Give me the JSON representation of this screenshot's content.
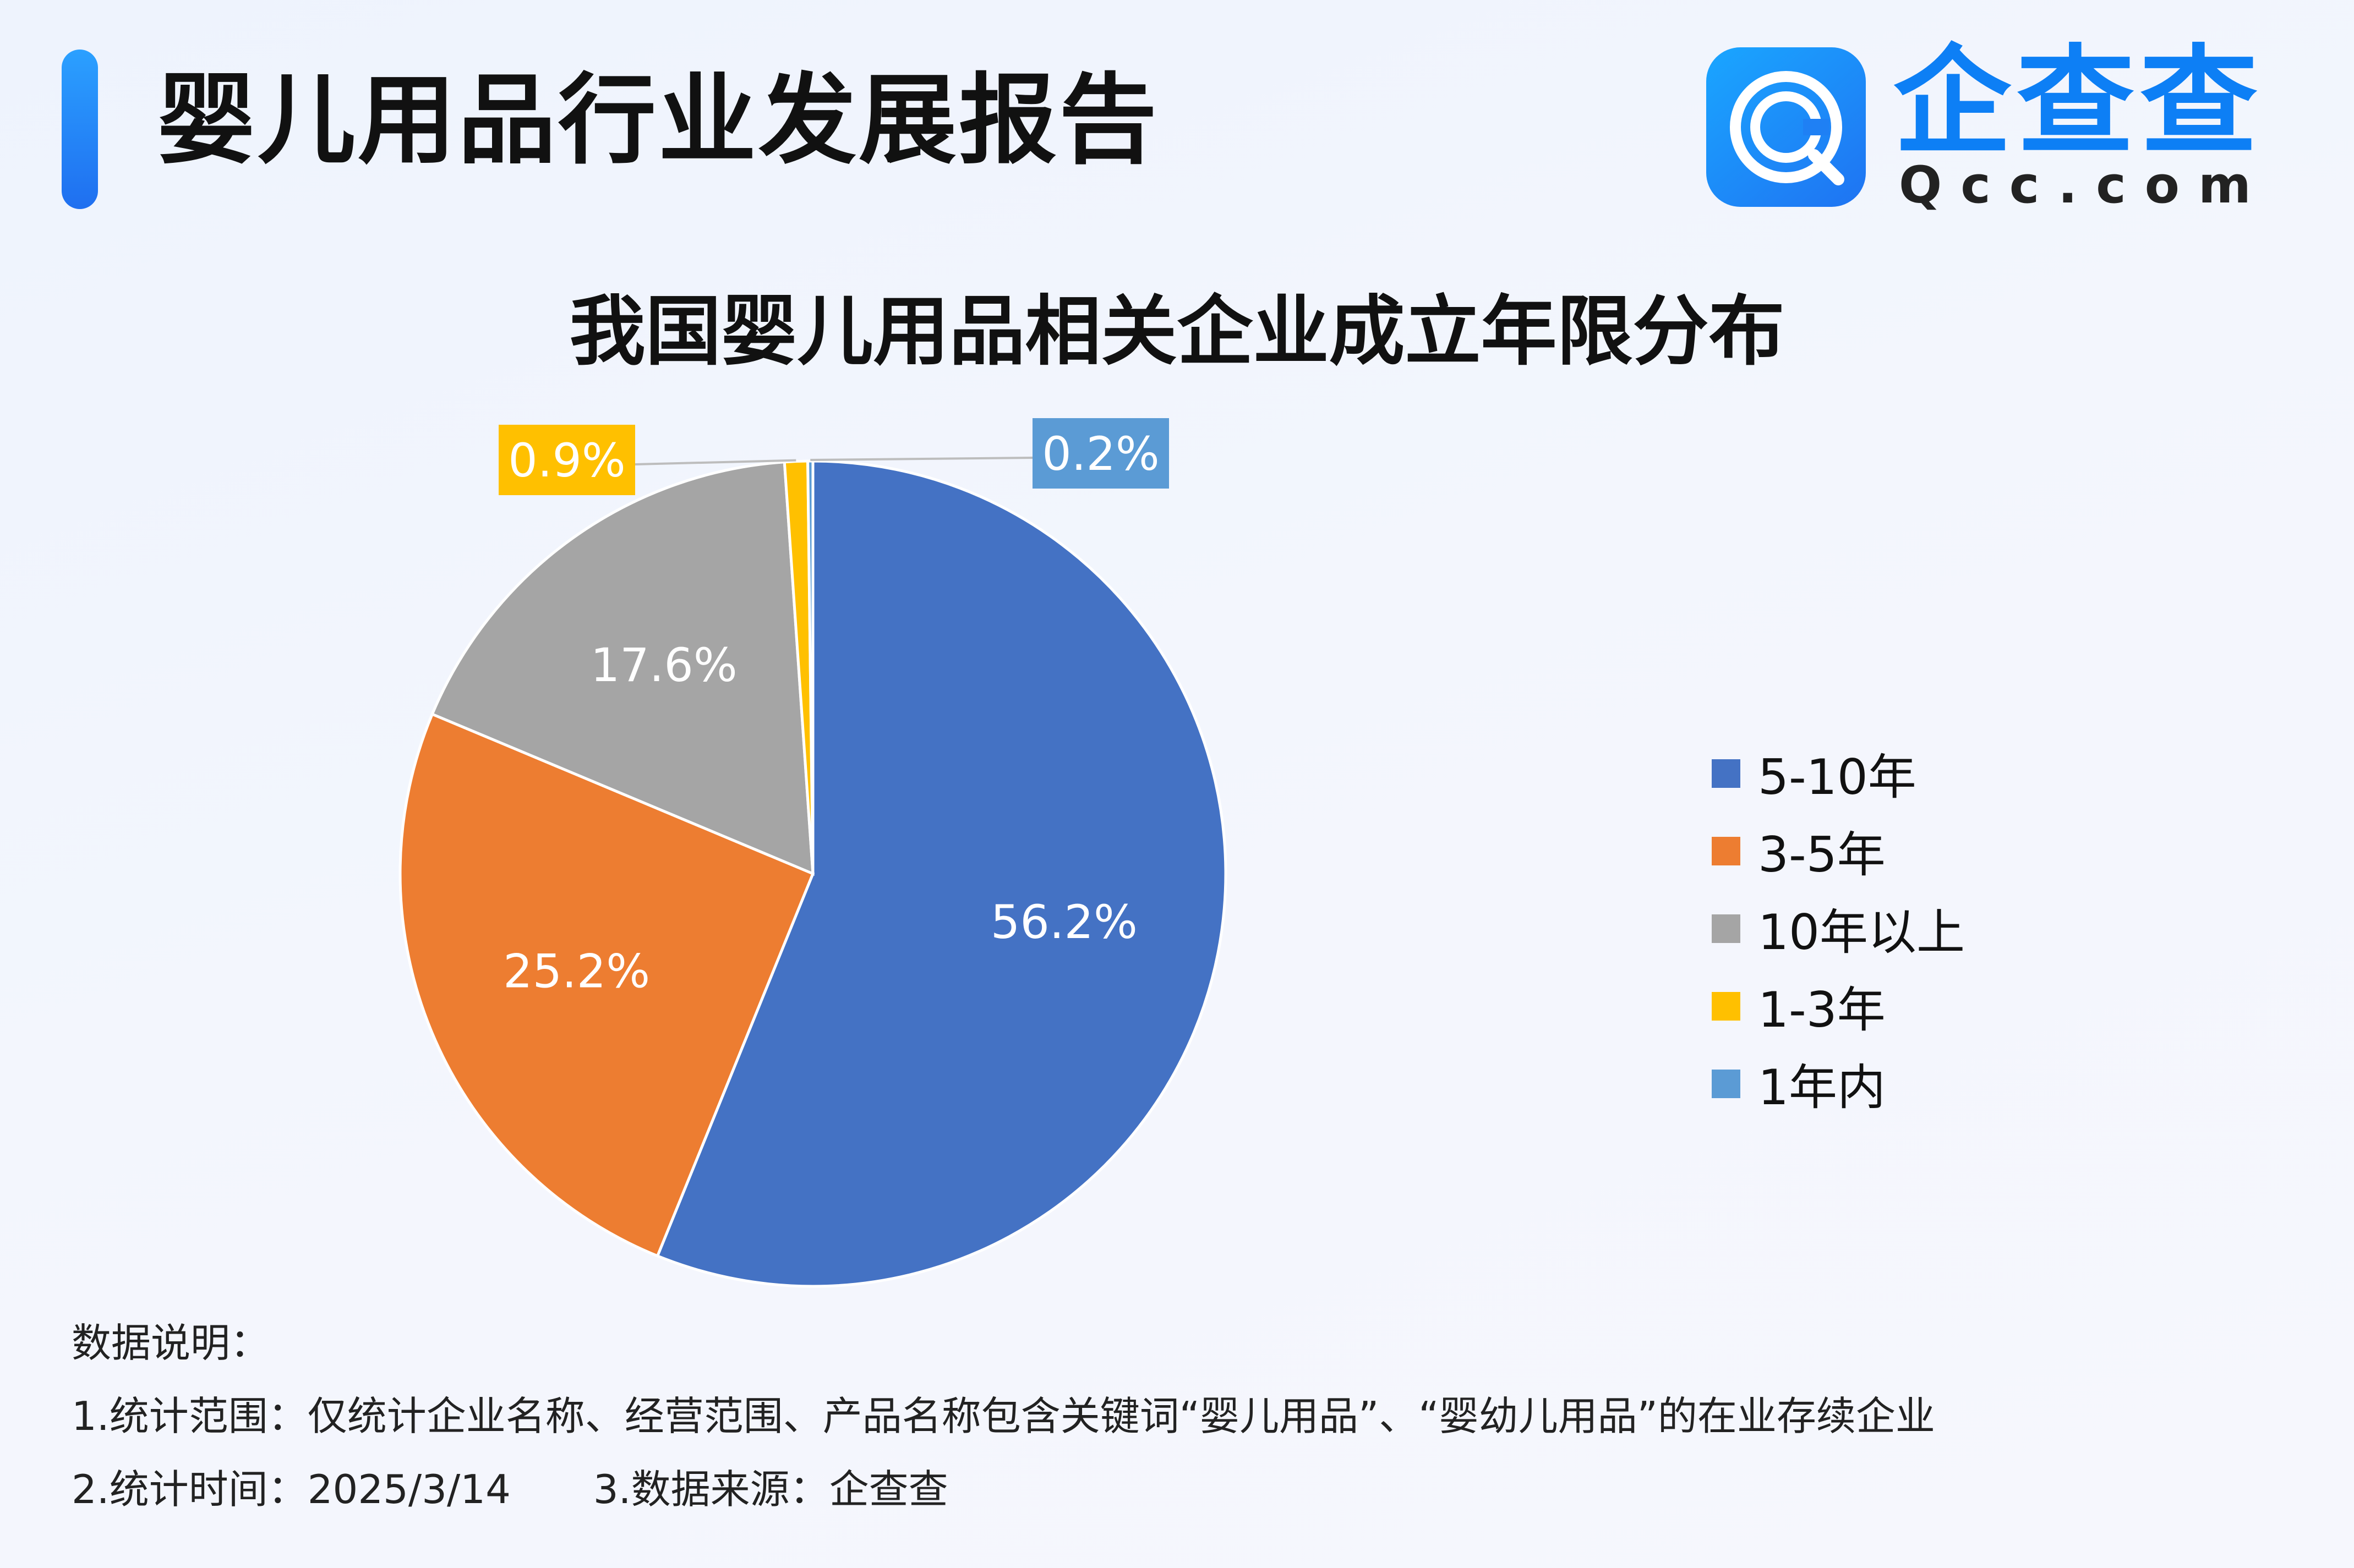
{
  "header": {
    "title": "婴儿用品行业发展报告",
    "logo_cn": "企查查",
    "logo_en": "Qcc.com"
  },
  "colors": {
    "accent": "#1f73f2",
    "series": [
      "#4472c4",
      "#ed7d31",
      "#a5a5a5",
      "#ffc000",
      "#5b9bd5"
    ]
  },
  "chart_data": {
    "type": "pie",
    "title": "我国婴儿用品相关企业成立年限分布",
    "categories": [
      "5-10年",
      "3-5年",
      "10年以上",
      "1-3年",
      "1年内"
    ],
    "values": [
      56.2,
      25.2,
      17.6,
      0.9,
      0.2
    ],
    "labels": [
      "56.2%",
      "25.2%",
      "17.6%",
      "0.9%",
      "0.2%"
    ],
    "legend_position": "right"
  },
  "notes": {
    "heading": "数据说明：",
    "line1": "1.统计范围：仅统计企业名称、经营范围、产品名称包含关键词“婴儿用品”、“婴幼儿用品”的在业存续企业",
    "line2a": "2.统计时间：2025/3/14",
    "line2b": "3.数据来源：企查查"
  }
}
